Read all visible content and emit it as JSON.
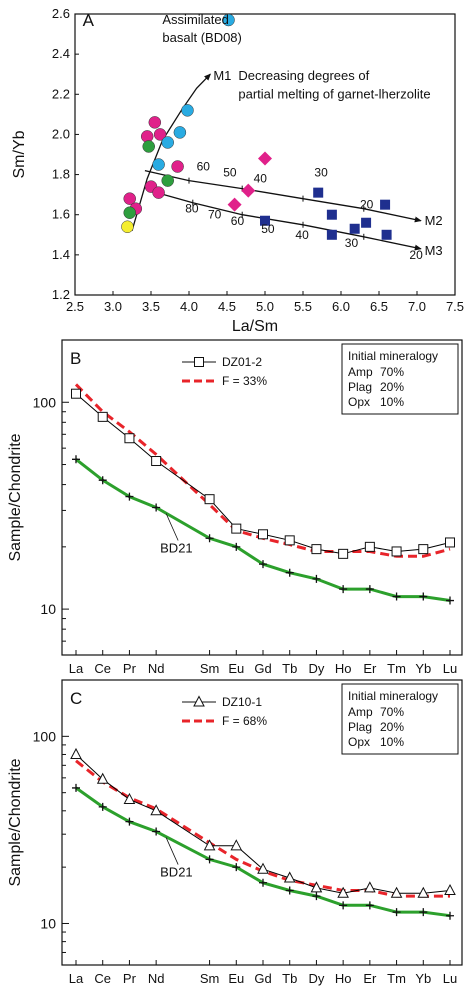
{
  "chart_data": [
    {
      "panel": "A",
      "type": "scatter",
      "xlabel": "La/Sm",
      "ylabel": "Sm/Yb",
      "xlim": [
        2.5,
        7.5
      ],
      "ylim": [
        1.2,
        2.6
      ],
      "xticks": [
        "2.5",
        "3.0",
        "3.5",
        "4.0",
        "4.5",
        "5.0",
        "5.5",
        "6.0",
        "6.5",
        "7.0",
        "7.5"
      ],
      "yticks": [
        "1.2",
        "1.4",
        "1.6",
        "1.8",
        "2.0",
        "2.2",
        "2.4",
        "2.6"
      ],
      "series": [
        {
          "marker": "circle",
          "color": "#e0218a",
          "points": [
            [
              3.22,
              1.68
            ],
            [
              3.3,
              1.63
            ],
            [
              3.45,
              1.99
            ],
            [
              3.5,
              1.74
            ],
            [
              3.55,
              2.06
            ],
            [
              3.6,
              1.71
            ],
            [
              3.62,
              2.0
            ],
            [
              3.85,
              1.84
            ]
          ]
        },
        {
          "marker": "circle",
          "color": "#29abe2",
          "points": [
            [
              3.6,
              1.85
            ],
            [
              3.72,
              1.96
            ],
            [
              3.88,
              2.01
            ],
            [
              3.98,
              2.12
            ],
            [
              4.52,
              2.57
            ]
          ]
        },
        {
          "marker": "circle",
          "color": "#2e9e3e",
          "points": [
            [
              3.22,
              1.61
            ],
            [
              3.47,
              1.94
            ],
            [
              3.72,
              1.77
            ]
          ]
        },
        {
          "marker": "circle",
          "color": "#f5ee30",
          "points": [
            [
              3.19,
              1.54
            ]
          ]
        },
        {
          "marker": "diamond",
          "color": "#e0218a",
          "points": [
            [
              4.6,
              1.65
            ],
            [
              4.78,
              1.72
            ],
            [
              5.0,
              1.88
            ]
          ]
        },
        {
          "marker": "square",
          "color": "#1f2f8f",
          "points": [
            [
              5.0,
              1.57
            ],
            [
              5.7,
              1.71
            ],
            [
              5.88,
              1.6
            ],
            [
              5.88,
              1.5
            ],
            [
              6.18,
              1.53
            ],
            [
              6.33,
              1.56
            ],
            [
              6.58,
              1.65
            ],
            [
              6.6,
              1.5
            ]
          ]
        }
      ],
      "curves": [
        {
          "name": "M1",
          "points": [
            [
              3.25,
              1.52
            ],
            [
              3.45,
              1.78
            ],
            [
              3.65,
              1.97
            ],
            [
              3.9,
              2.12
            ],
            [
              4.1,
              2.23
            ],
            [
              4.28,
              2.3
            ]
          ]
        },
        {
          "name": "M2",
          "points": [
            [
              3.42,
              1.82
            ],
            [
              4.0,
              1.77
            ],
            [
              4.7,
              1.73
            ],
            [
              5.5,
              1.68
            ],
            [
              6.3,
              1.63
            ],
            [
              7.05,
              1.57
            ]
          ]
        },
        {
          "name": "M3",
          "points": [
            [
              3.48,
              1.72
            ],
            [
              4.05,
              1.66
            ],
            [
              4.7,
              1.6
            ],
            [
              5.5,
              1.55
            ],
            [
              6.3,
              1.49
            ],
            [
              7.05,
              1.43
            ]
          ]
        }
      ],
      "annotations": [
        {
          "text": "A",
          "x": 2.6,
          "y": 2.54
        },
        {
          "text": "Assimilated",
          "x": 3.65,
          "y": 2.55
        },
        {
          "text": "basalt (BD08)",
          "x": 3.65,
          "y": 2.46
        },
        {
          "text": "M1",
          "x": 4.32,
          "y": 2.27
        },
        {
          "text": "Decreasing degrees of",
          "x": 4.65,
          "y": 2.27
        },
        {
          "text": "partial melting of garnet-lherzolite",
          "x": 4.65,
          "y": 2.18
        },
        {
          "text": "M2",
          "x": 7.1,
          "y": 1.55
        },
        {
          "text": "M3",
          "x": 7.1,
          "y": 1.4
        },
        {
          "text": "60",
          "x": 4.1,
          "y": 1.82
        },
        {
          "text": "50",
          "x": 4.45,
          "y": 1.79
        },
        {
          "text": "40",
          "x": 4.85,
          "y": 1.76
        },
        {
          "text": "30",
          "x": 5.65,
          "y": 1.79
        },
        {
          "text": "20",
          "x": 6.25,
          "y": 1.63
        },
        {
          "text": "80",
          "x": 3.95,
          "y": 1.61
        },
        {
          "text": "70",
          "x": 4.25,
          "y": 1.58
        },
        {
          "text": "60",
          "x": 4.55,
          "y": 1.55
        },
        {
          "text": "50",
          "x": 4.95,
          "y": 1.51
        },
        {
          "text": "40",
          "x": 5.4,
          "y": 1.48
        },
        {
          "text": "30",
          "x": 6.05,
          "y": 1.44
        },
        {
          "text": "20",
          "x": 6.9,
          "y": 1.38
        }
      ]
    },
    {
      "panel": "B",
      "type": "line",
      "ylabel": "Sample/Chondrite",
      "yscale": "log",
      "ylim": [
        6,
        200
      ],
      "yticks": [
        "10",
        "100"
      ],
      "categories": [
        "La",
        "Ce",
        "Pr",
        "Nd",
        "Sm",
        "Eu",
        "Gd",
        "Tb",
        "Dy",
        "Ho",
        "Er",
        "Tm",
        "Yb",
        "Lu"
      ],
      "positions": [
        0,
        1,
        2,
        3,
        5,
        6,
        7,
        8,
        9,
        10,
        11,
        12,
        13,
        14
      ],
      "series": [
        {
          "name": "DZ01-2",
          "color": "#000000",
          "marker": "square",
          "values": [
            110,
            85,
            67,
            52,
            34,
            24.5,
            23,
            21.5,
            19.5,
            18.5,
            20,
            19,
            19.5,
            21
          ]
        },
        {
          "name": "F = 33%",
          "color": "#e8242a",
          "dash": true,
          "values": [
            122,
            90,
            72,
            56,
            32,
            24,
            22,
            20.5,
            19,
            19,
            19,
            18,
            18,
            19.5
          ]
        },
        {
          "name": "BD21",
          "color": "#2ca02c",
          "marker": "plus",
          "values": [
            53,
            42,
            35,
            31,
            22,
            20,
            16.5,
            15,
            14,
            12.5,
            12.5,
            11.5,
            11.5,
            11
          ]
        }
      ],
      "legend_box": {
        "title": "Initial mineralogy",
        "rows": [
          [
            "Amp",
            "70%"
          ],
          [
            "Plag",
            "20%"
          ],
          [
            "Opx",
            "10%"
          ]
        ]
      },
      "annotations": [
        {
          "text": "B"
        },
        {
          "text": "BD21"
        }
      ]
    },
    {
      "panel": "C",
      "type": "line",
      "ylabel": "Sample/Chondrite",
      "yscale": "log",
      "ylim": [
        6,
        200
      ],
      "yticks": [
        "10",
        "100"
      ],
      "categories": [
        "La",
        "Ce",
        "Pr",
        "Nd",
        "Sm",
        "Eu",
        "Gd",
        "Tb",
        "Dy",
        "Ho",
        "Er",
        "Tm",
        "Yb",
        "Lu"
      ],
      "positions": [
        0,
        1,
        2,
        3,
        5,
        6,
        7,
        8,
        9,
        10,
        11,
        12,
        13,
        14
      ],
      "series": [
        {
          "name": "DZ10-1",
          "color": "#000000",
          "marker": "triangle",
          "values": [
            80,
            59,
            46,
            40,
            26,
            26,
            19.5,
            17.5,
            15.5,
            14.5,
            15.5,
            14.5,
            14.5,
            15
          ]
        },
        {
          "name": "F = 68%",
          "color": "#e8242a",
          "dash": true,
          "values": [
            74,
            57,
            47,
            41,
            27,
            22,
            19,
            17,
            16,
            15,
            15,
            14,
            14,
            14
          ]
        },
        {
          "name": "BD21",
          "color": "#2ca02c",
          "marker": "plus",
          "values": [
            53,
            42,
            35,
            31,
            22,
            20,
            16.5,
            15,
            14,
            12.5,
            12.5,
            11.5,
            11.5,
            11
          ]
        }
      ],
      "legend_box": {
        "title": "Initial mineralogy",
        "rows": [
          [
            "Amp",
            "70%"
          ],
          [
            "Plag",
            "20%"
          ],
          [
            "Opx",
            "10%"
          ]
        ]
      },
      "annotations": [
        {
          "text": "C"
        },
        {
          "text": "BD21"
        }
      ]
    }
  ]
}
